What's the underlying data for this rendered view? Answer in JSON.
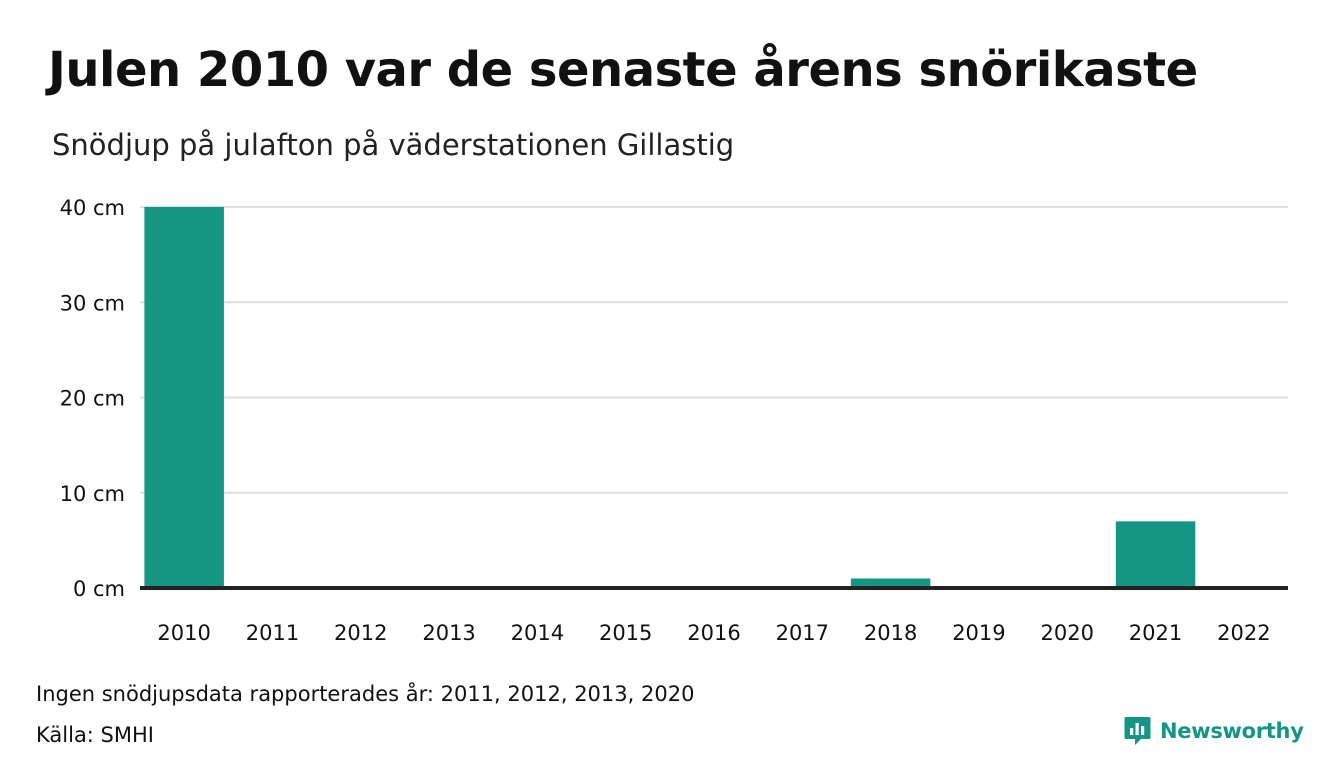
{
  "colors": {
    "bar": "#159584",
    "grid": "#dedede",
    "baseline": "#222222",
    "text": "#111111",
    "brand": "#159584"
  },
  "header": {
    "title": "Julen 2010 var de senaste årens snörikaste",
    "subtitle": "Snödjup på julafton på väderstationen Gillastig"
  },
  "footer": {
    "note": "Ingen snödjupsdata rapporterades år: 2011, 2012, 2013, 2020",
    "source": "Källa: SMHI"
  },
  "brand": {
    "name": "Newsworthy",
    "icon": "newsworthy-logo-icon"
  },
  "chart_data": {
    "type": "bar",
    "categories": [
      "2010",
      "2011",
      "2012",
      "2013",
      "2014",
      "2015",
      "2016",
      "2017",
      "2018",
      "2019",
      "2020",
      "2021",
      "2022"
    ],
    "values": [
      40,
      null,
      null,
      null,
      0,
      0,
      0,
      0,
      1,
      0,
      null,
      7,
      0
    ],
    "ylim": [
      0,
      40
    ],
    "yticks": [
      0,
      10,
      20,
      30,
      40
    ],
    "ytick_labels": [
      "0 cm",
      "10 cm",
      "20 cm",
      "30 cm",
      "40 cm"
    ],
    "grid": true,
    "legend": "none"
  }
}
